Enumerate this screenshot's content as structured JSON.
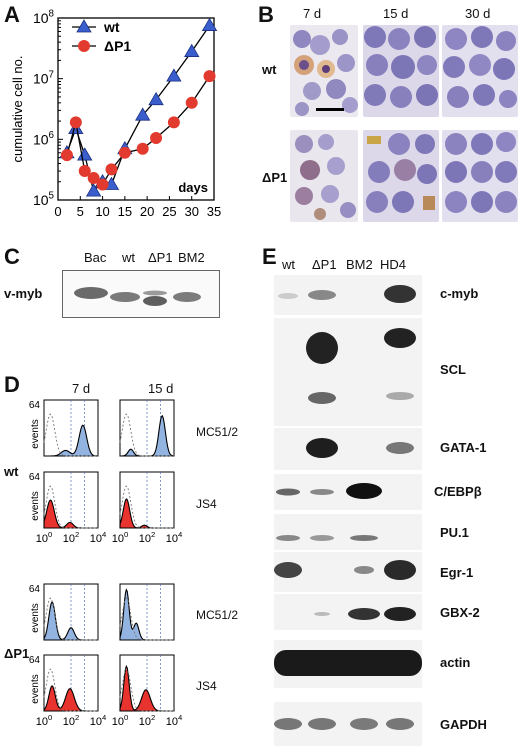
{
  "panel_letters": {
    "a": "A",
    "b": "B",
    "c": "C",
    "d": "D",
    "e": "E"
  },
  "chart_data": {
    "type": "line",
    "ylabel": "cumulative cell no.",
    "xlabel": "days",
    "ylog": true,
    "ylim": [
      100000,
      100000000
    ],
    "xlim": [
      0,
      35
    ],
    "xticks": [
      0,
      5,
      10,
      15,
      20,
      25,
      30,
      35
    ],
    "yticks": [
      {
        "value": 100000,
        "base": "10",
        "exp": "5"
      },
      {
        "value": 1000000,
        "base": "10",
        "exp": "6"
      },
      {
        "value": 10000000,
        "base": "10",
        "exp": "7"
      },
      {
        "value": 100000000,
        "base": "10",
        "exp": "8"
      }
    ],
    "legend_position": "top-left",
    "series": [
      {
        "name": "wt",
        "marker": "triangle",
        "color": "#3a5fcd",
        "x": [
          2,
          4,
          6,
          8,
          10,
          12,
          15,
          19,
          22,
          26,
          30,
          34
        ],
        "y": [
          600000,
          1500000,
          550000,
          140000,
          200000,
          180000,
          700000,
          2500000,
          4500000,
          11000000,
          28000000,
          75000000
        ]
      },
      {
        "name": "ΔP1",
        "marker": "circle",
        "color": "#e23a2e",
        "x": [
          2,
          4,
          6,
          8,
          10,
          12,
          15,
          19,
          22,
          26,
          30,
          34
        ],
        "y": [
          550000,
          1900000,
          300000,
          230000,
          180000,
          320000,
          600000,
          700000,
          1050000,
          1900000,
          4000000,
          11000000
        ]
      }
    ]
  },
  "panel_b": {
    "columns": [
      "7 d",
      "15 d",
      "30 d"
    ],
    "rows": [
      "wt",
      "ΔP1"
    ]
  },
  "panel_c": {
    "row_label": "v-myb",
    "lanes": [
      "Bac",
      "wt",
      "ΔP1",
      "BM2"
    ]
  },
  "panel_d": {
    "columns": [
      "7 d",
      "15 d"
    ],
    "ymax": "64",
    "ylabel": "events",
    "xticks": [
      {
        "base": "10",
        "exp": "0"
      },
      {
        "base": "10",
        "exp": "2"
      },
      {
        "base": "10",
        "exp": "4"
      }
    ],
    "groups": [
      {
        "label": "wt",
        "markers": [
          "MC51/2",
          "JS4"
        ]
      },
      {
        "label": "ΔP1",
        "markers": [
          "MC51/2",
          "JS4"
        ]
      }
    ]
  },
  "panel_e": {
    "lanes": [
      "wt",
      "ΔP1",
      "BM2",
      "HD4"
    ],
    "genes": [
      "c-myb",
      "SCL",
      "GATA-1",
      "C/EBPβ",
      "PU.1",
      "Egr-1",
      "GBX-2",
      "actin",
      "GAPDH"
    ]
  }
}
